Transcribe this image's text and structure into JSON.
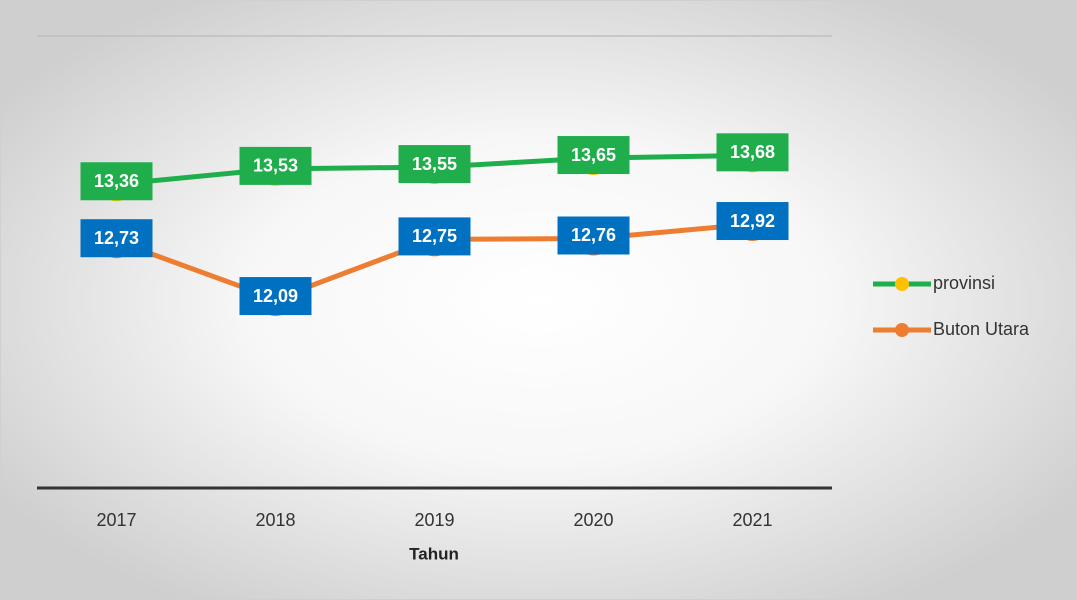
{
  "chart_data": {
    "type": "line",
    "x_label": "Tahun",
    "categories": [
      "2017",
      "2018",
      "2019",
      "2020",
      "2021"
    ],
    "ylim": [
      10,
      15
    ],
    "series": [
      {
        "name": "provinsi",
        "color": "#1fae4b",
        "marker_color": "#ffc000",
        "label_color": "#1fae4b",
        "values": [
          13.36,
          13.53,
          13.55,
          13.65,
          13.68
        ],
        "value_labels": [
          "13,36",
          "13,53",
          "13,55",
          "13,65",
          "13,68"
        ]
      },
      {
        "name": "Buton Utara",
        "color": "#ed7d31",
        "marker_color": "#ed7d31",
        "label_color": "#0070c0",
        "values": [
          12.73,
          12.09,
          12.75,
          12.76,
          12.92
        ],
        "value_labels": [
          "12,73",
          "12,09",
          "12,75",
          "12,76",
          "12,92"
        ]
      }
    ]
  }
}
